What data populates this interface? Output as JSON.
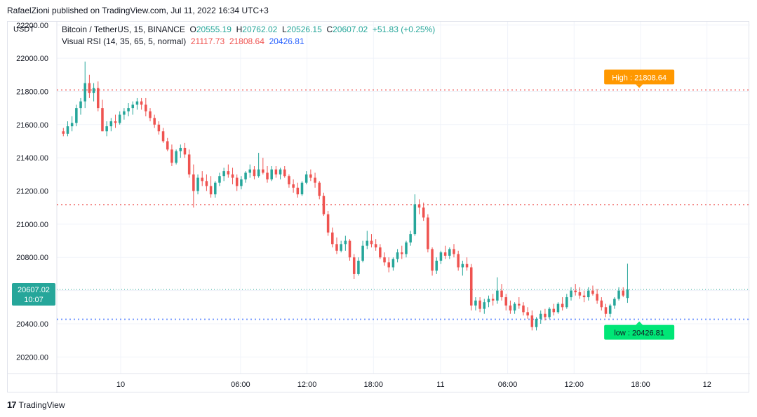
{
  "header": {
    "published": "RafaelZioni published on TradingView.com, Jul 11, 2022 16:34 UTC+3"
  },
  "legend": {
    "symbol": "Bitcoin / TetherUS, 15, BINANCE",
    "o_label": "O",
    "o_value": "20555.19",
    "h_label": "H",
    "h_value": "20762.02",
    "l_label": "L",
    "l_value": "20526.15",
    "c_label": "C",
    "c_value": "20607.02",
    "change": "+51.83 (+0.25%)",
    "indicator": "Visual RSI (14, 35, 65, 5, normal)",
    "ind_v1": "21117.73",
    "ind_v2": "21808.64",
    "ind_v3": "20426.81"
  },
  "footer": {
    "brand": "TradingView",
    "logo": "17"
  },
  "colors": {
    "up": "#26a69a",
    "down": "#ef5350",
    "high_label": "#ff9800",
    "low_label": "#00e676",
    "mid_line": "#ef5350",
    "high_line": "#ef5350",
    "low_line": "#2962ff"
  },
  "chart_data": {
    "type": "candlestick",
    "currency": "USDT",
    "y_ticks": [
      "20200.00",
      "20400.00",
      "20600.00",
      "20800.00",
      "21000.00",
      "21200.00",
      "21400.00",
      "21600.00",
      "21800.00",
      "22000.00",
      "22200.00"
    ],
    "ylim": [
      20100,
      22220
    ],
    "x_ticks": [
      {
        "label": "10",
        "t": 0.9
      },
      {
        "label": "06:00",
        "t": 19.3
      },
      {
        "label": "12:00",
        "t": 29.5
      },
      {
        "label": "18:00",
        "t": 39.7
      },
      {
        "label": "11",
        "t": 50.0
      },
      {
        "label": "06:00",
        "t": 60.3
      },
      {
        "label": "12:00",
        "t": 70.5
      },
      {
        "label": "18:00",
        "t": 80.7
      },
      {
        "label": "12",
        "t": 90.9
      }
    ],
    "xlim": [
      -8.9,
      97.5
    ],
    "price_tag": {
      "value": 20607.02,
      "price": "20607.02",
      "time": "10:07"
    },
    "levels": [
      {
        "name": "high",
        "value": 21808.64,
        "label": "High : 21808.64",
        "t": 80.5
      },
      {
        "name": "mid",
        "value": 21117.73
      },
      {
        "name": "low",
        "value": 20426.81,
        "label": "low : 20426.81",
        "t": 80.5
      }
    ],
    "candles": [
      [
        21560,
        21580,
        21530,
        21545
      ],
      [
        21545,
        21620,
        21530,
        21590
      ],
      [
        21590,
        21650,
        21560,
        21610
      ],
      [
        21610,
        21720,
        21590,
        21700
      ],
      [
        21700,
        21760,
        21660,
        21740
      ],
      [
        21740,
        21980,
        21700,
        21850
      ],
      [
        21850,
        21900,
        21760,
        21790
      ],
      [
        21790,
        21850,
        21740,
        21820
      ],
      [
        21820,
        21860,
        21680,
        21700
      ],
      [
        21700,
        21750,
        21560,
        21560
      ],
      [
        21560,
        21620,
        21530,
        21590
      ],
      [
        21590,
        21640,
        21560,
        21620
      ],
      [
        21620,
        21660,
        21580,
        21610
      ],
      [
        21610,
        21680,
        21600,
        21660
      ],
      [
        21660,
        21700,
        21630,
        21680
      ],
      [
        21680,
        21730,
        21650,
        21700
      ],
      [
        21700,
        21740,
        21660,
        21720
      ],
      [
        21720,
        21760,
        21690,
        21740
      ],
      [
        21740,
        21760,
        21690,
        21720
      ],
      [
        21720,
        21760,
        21650,
        21680
      ],
      [
        21680,
        21700,
        21620,
        21640
      ],
      [
        21640,
        21660,
        21580,
        21600
      ],
      [
        21600,
        21620,
        21540,
        21560
      ],
      [
        21560,
        21580,
        21490,
        21500
      ],
      [
        21500,
        21520,
        21440,
        21450
      ],
      [
        21450,
        21480,
        21350,
        21370
      ],
      [
        21370,
        21450,
        21360,
        21440
      ],
      [
        21440,
        21480,
        21400,
        21460
      ],
      [
        21460,
        21490,
        21400,
        21420
      ],
      [
        21420,
        21450,
        21280,
        21300
      ],
      [
        21300,
        21360,
        21100,
        21200
      ],
      [
        21200,
        21300,
        21180,
        21280
      ],
      [
        21280,
        21320,
        21230,
        21260
      ],
      [
        21260,
        21300,
        21200,
        21230
      ],
      [
        21230,
        21290,
        21160,
        21180
      ],
      [
        21180,
        21260,
        21160,
        21250
      ],
      [
        21250,
        21310,
        21230,
        21290
      ],
      [
        21290,
        21340,
        21260,
        21320
      ],
      [
        21320,
        21360,
        21280,
        21300
      ],
      [
        21300,
        21340,
        21240,
        21280
      ],
      [
        21280,
        21300,
        21200,
        21230
      ],
      [
        21230,
        21290,
        21210,
        21270
      ],
      [
        21270,
        21320,
        21250,
        21310
      ],
      [
        21310,
        21360,
        21280,
        21330
      ],
      [
        21330,
        21350,
        21270,
        21290
      ],
      [
        21290,
        21430,
        21280,
        21330
      ],
      [
        21330,
        21400,
        21300,
        21310
      ],
      [
        21310,
        21350,
        21250,
        21270
      ],
      [
        21270,
        21350,
        21260,
        21330
      ],
      [
        21330,
        21350,
        21280,
        21300
      ],
      [
        21300,
        21340,
        21270,
        21330
      ],
      [
        21330,
        21350,
        21280,
        21290
      ],
      [
        21290,
        21300,
        21220,
        21240
      ],
      [
        21240,
        21270,
        21190,
        21220
      ],
      [
        21220,
        21250,
        21160,
        21180
      ],
      [
        21180,
        21260,
        21170,
        21250
      ],
      [
        21250,
        21320,
        21240,
        21300
      ],
      [
        21300,
        21330,
        21260,
        21280
      ],
      [
        21280,
        21310,
        21220,
        21250
      ],
      [
        21250,
        21260,
        21150,
        21170
      ],
      [
        21170,
        21190,
        21050,
        21060
      ],
      [
        21060,
        21080,
        20930,
        20950
      ],
      [
        20950,
        20980,
        20860,
        20880
      ],
      [
        20880,
        20920,
        20820,
        20840
      ],
      [
        20840,
        20900,
        20830,
        20880
      ],
      [
        20880,
        20930,
        20840,
        20900
      ],
      [
        20900,
        20910,
        20780,
        20800
      ],
      [
        20800,
        20820,
        20670,
        20700
      ],
      [
        20700,
        20800,
        20690,
        20780
      ],
      [
        20780,
        20900,
        20770,
        20870
      ],
      [
        20870,
        20960,
        20850,
        20900
      ],
      [
        20900,
        20940,
        20860,
        20880
      ],
      [
        20880,
        20910,
        20840,
        20860
      ],
      [
        20860,
        20880,
        20790,
        20800
      ],
      [
        20800,
        20830,
        20750,
        20770
      ],
      [
        20770,
        20800,
        20710,
        20740
      ],
      [
        20740,
        20800,
        20720,
        20790
      ],
      [
        20790,
        20850,
        20770,
        20830
      ],
      [
        20830,
        20870,
        20790,
        20820
      ],
      [
        20820,
        20900,
        20800,
        20890
      ],
      [
        20890,
        20960,
        20870,
        20940
      ],
      [
        20940,
        21180,
        20930,
        21120
      ],
      [
        21120,
        21150,
        21060,
        21100
      ],
      [
        21100,
        21130,
        21020,
        21040
      ],
      [
        21040,
        21060,
        20830,
        20850
      ],
      [
        20850,
        20860,
        20690,
        20720
      ],
      [
        20720,
        20800,
        20700,
        20780
      ],
      [
        20780,
        20840,
        20760,
        20830
      ],
      [
        20830,
        20870,
        20790,
        20810
      ],
      [
        20810,
        20860,
        20790,
        20850
      ],
      [
        20850,
        20880,
        20800,
        20820
      ],
      [
        20820,
        20840,
        20720,
        20740
      ],
      [
        20740,
        20780,
        20690,
        20760
      ],
      [
        20760,
        20800,
        20720,
        20740
      ],
      [
        20740,
        20760,
        20480,
        20510
      ],
      [
        20510,
        20560,
        20480,
        20540
      ],
      [
        20540,
        20560,
        20470,
        20490
      ],
      [
        20490,
        20550,
        20460,
        20530
      ],
      [
        20530,
        20570,
        20500,
        20550
      ],
      [
        20550,
        20580,
        20510,
        20540
      ],
      [
        20540,
        20680,
        20520,
        20600
      ],
      [
        20600,
        20640,
        20540,
        20560
      ],
      [
        20560,
        20580,
        20480,
        20510
      ],
      [
        20510,
        20540,
        20460,
        20480
      ],
      [
        20480,
        20530,
        20460,
        20520
      ],
      [
        20520,
        20560,
        20490,
        20510
      ],
      [
        20510,
        20530,
        20450,
        20470
      ],
      [
        20470,
        20500,
        20430,
        20450
      ],
      [
        20450,
        20480,
        20360,
        20380
      ],
      [
        20380,
        20440,
        20360,
        20430
      ],
      [
        20430,
        20480,
        20400,
        20460
      ],
      [
        20460,
        20490,
        20420,
        20440
      ],
      [
        20440,
        20500,
        20430,
        20490
      ],
      [
        20490,
        20520,
        20450,
        20470
      ],
      [
        20470,
        20530,
        20460,
        20520
      ],
      [
        20520,
        20560,
        20480,
        20500
      ],
      [
        20500,
        20580,
        20490,
        20560
      ],
      [
        20560,
        20620,
        20540,
        20600
      ],
      [
        20600,
        20640,
        20570,
        20590
      ],
      [
        20590,
        20620,
        20550,
        20570
      ],
      [
        20570,
        20600,
        20530,
        20560
      ],
      [
        20560,
        20620,
        20540,
        20600
      ],
      [
        20600,
        20630,
        20570,
        20580
      ],
      [
        20580,
        20610,
        20520,
        20540
      ],
      [
        20540,
        20560,
        20480,
        20500
      ],
      [
        20500,
        20520,
        20440,
        20460
      ],
      [
        20460,
        20520,
        20440,
        20510
      ],
      [
        20510,
        20560,
        20490,
        20550
      ],
      [
        20550,
        20620,
        20540,
        20600
      ],
      [
        20600,
        20620,
        20560,
        20570
      ],
      [
        20555.19,
        20762.02,
        20526.15,
        20607.02
      ]
    ]
  }
}
